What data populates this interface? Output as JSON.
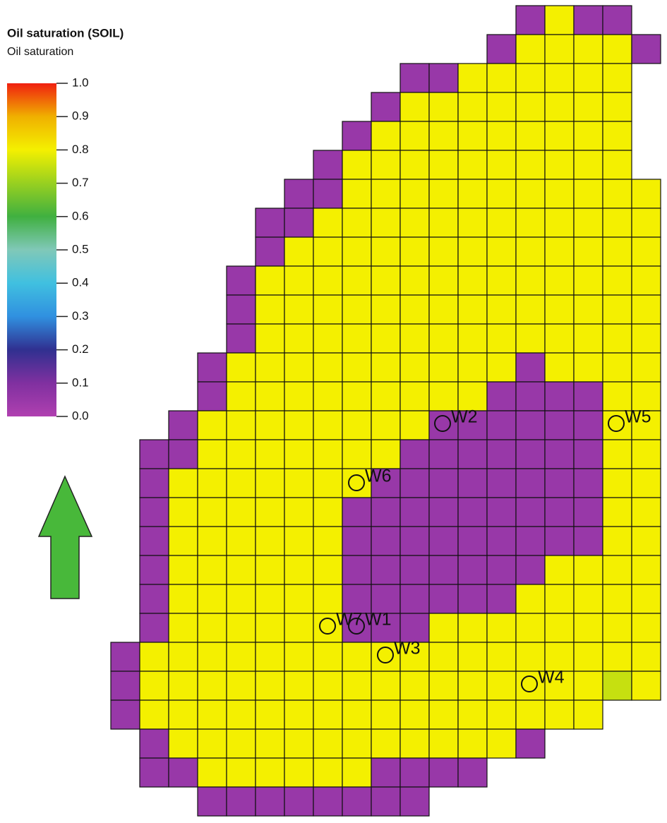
{
  "chart_data": {
    "type": "heatmap",
    "title": "Oil saturation (SOIL)",
    "subtitle": "Oil saturation",
    "colormap": [
      "#b040b0",
      "#8030a0",
      "#303090",
      "#3090e0",
      "#40c0e0",
      "#80c8b8",
      "#40b040",
      "#98d020",
      "#f4f000",
      "#f0b000",
      "#f02010"
    ],
    "clim": [
      0,
      1
    ],
    "cticks": [
      {
        "value": 0,
        "label": "0.0"
      },
      0.1,
      0.2,
      0.3,
      0.4,
      0.5,
      0.6,
      0.7,
      0.8,
      0.9,
      {
        "value": 1,
        "label": "1.0"
      }
    ],
    "wells": [
      "W2",
      "W5",
      "W6",
      "W7",
      "W1",
      "W3",
      "W4"
    ],
    "cells": [
      [
        null,
        null,
        null,
        null,
        null,
        null,
        null,
        null,
        null,
        null,
        null,
        null,
        null,
        null,
        0.05,
        0.8,
        0.05,
        0.05,
        null
      ],
      [
        null,
        null,
        null,
        null,
        null,
        null,
        null,
        null,
        null,
        null,
        null,
        null,
        null,
        0.05,
        0.8,
        0.8,
        0.8,
        0.8,
        0.05
      ],
      [
        null,
        null,
        null,
        null,
        null,
        null,
        null,
        null,
        null,
        null,
        0.05,
        0.05,
        0.8,
        0.8,
        0.8,
        0.8,
        0.8,
        0.8,
        null
      ],
      [
        null,
        null,
        null,
        null,
        null,
        null,
        null,
        null,
        null,
        0.05,
        0.8,
        0.8,
        0.8,
        0.8,
        0.8,
        0.8,
        0.8,
        0.8,
        null
      ],
      [
        null,
        null,
        null,
        null,
        null,
        null,
        null,
        null,
        0.05,
        0.8,
        0.8,
        0.8,
        0.8,
        0.8,
        0.8,
        0.8,
        0.8,
        0.8,
        null
      ],
      [
        null,
        null,
        null,
        null,
        null,
        null,
        null,
        0.05,
        0.8,
        0.8,
        0.8,
        0.8,
        0.8,
        0.8,
        0.8,
        0.8,
        0.8,
        0.8,
        null
      ],
      [
        null,
        null,
        null,
        null,
        null,
        null,
        0.05,
        0.05,
        0.8,
        0.8,
        0.8,
        0.8,
        0.8,
        0.8,
        0.8,
        0.8,
        0.8,
        0.8,
        0.8
      ],
      [
        null,
        null,
        null,
        null,
        null,
        0.05,
        0.05,
        0.8,
        0.8,
        0.8,
        0.8,
        0.8,
        0.8,
        0.8,
        0.8,
        0.8,
        0.8,
        0.8,
        0.8
      ],
      [
        null,
        null,
        null,
        null,
        null,
        0.05,
        0.8,
        0.8,
        0.8,
        0.8,
        0.8,
        0.8,
        0.8,
        0.8,
        0.8,
        0.8,
        0.8,
        0.8,
        0.8
      ],
      [
        null,
        null,
        null,
        null,
        0.05,
        0.8,
        0.8,
        0.8,
        0.8,
        0.8,
        0.8,
        0.8,
        0.8,
        0.8,
        0.8,
        0.8,
        0.8,
        0.8,
        0.8
      ],
      [
        null,
        null,
        null,
        null,
        0.05,
        0.8,
        0.8,
        0.8,
        0.8,
        0.8,
        0.8,
        0.8,
        0.8,
        0.8,
        0.8,
        0.8,
        0.8,
        0.8,
        0.8
      ],
      [
        null,
        null,
        null,
        null,
        0.05,
        0.8,
        0.8,
        0.8,
        0.8,
        0.8,
        0.8,
        0.8,
        0.8,
        0.8,
        0.8,
        0.8,
        0.8,
        0.8,
        0.8
      ],
      [
        null,
        null,
        null,
        0.05,
        0.8,
        0.8,
        0.8,
        0.8,
        0.8,
        0.8,
        0.8,
        0.8,
        0.8,
        0.8,
        0.05,
        0.8,
        0.8,
        0.8,
        0.8
      ],
      [
        null,
        null,
        null,
        0.05,
        0.8,
        0.8,
        0.8,
        0.8,
        0.8,
        0.8,
        0.8,
        0.8,
        0.8,
        0.05,
        0.05,
        0.05,
        0.05,
        0.8,
        0.8
      ],
      [
        null,
        null,
        0.05,
        0.8,
        0.8,
        0.8,
        0.8,
        0.8,
        0.8,
        0.8,
        0.8,
        0.05,
        0.05,
        0.05,
        0.05,
        0.05,
        0.05,
        0.8,
        0.8
      ],
      [
        null,
        0.05,
        0.05,
        0.8,
        0.8,
        0.8,
        0.8,
        0.8,
        0.8,
        0.8,
        0.05,
        0.05,
        0.05,
        0.05,
        0.05,
        0.05,
        0.05,
        0.8,
        0.8
      ],
      [
        null,
        0.05,
        0.8,
        0.8,
        0.8,
        0.8,
        0.8,
        0.8,
        0.8,
        0.05,
        0.05,
        0.05,
        0.05,
        0.05,
        0.05,
        0.05,
        0.05,
        0.8,
        0.8
      ],
      [
        null,
        0.05,
        0.8,
        0.8,
        0.8,
        0.8,
        0.8,
        0.8,
        0.05,
        0.05,
        0.05,
        0.05,
        0.05,
        0.05,
        0.05,
        0.05,
        0.05,
        0.8,
        0.8
      ],
      [
        null,
        0.05,
        0.8,
        0.8,
        0.8,
        0.8,
        0.8,
        0.8,
        0.05,
        0.05,
        0.05,
        0.05,
        0.05,
        0.05,
        0.05,
        0.05,
        0.05,
        0.8,
        0.8
      ],
      [
        null,
        0.05,
        0.8,
        0.8,
        0.8,
        0.8,
        0.8,
        0.8,
        0.05,
        0.05,
        0.05,
        0.05,
        0.05,
        0.05,
        0.05,
        0.8,
        0.8,
        0.8,
        0.8
      ],
      [
        null,
        0.05,
        0.8,
        0.8,
        0.8,
        0.8,
        0.8,
        0.8,
        0.05,
        0.05,
        0.05,
        0.05,
        0.05,
        0.05,
        0.8,
        0.8,
        0.8,
        0.8,
        0.8
      ],
      [
        null,
        0.05,
        0.8,
        0.8,
        0.8,
        0.8,
        0.8,
        0.8,
        0.05,
        0.05,
        0.05,
        0.8,
        0.8,
        0.8,
        0.8,
        0.8,
        0.8,
        0.8,
        0.8
      ],
      [
        0.05,
        0.8,
        0.8,
        0.8,
        0.8,
        0.8,
        0.8,
        0.8,
        0.8,
        0.8,
        0.8,
        0.8,
        0.8,
        0.8,
        0.8,
        0.8,
        0.8,
        0.8,
        0.8
      ],
      [
        0.05,
        0.8,
        0.8,
        0.8,
        0.8,
        0.8,
        0.8,
        0.8,
        0.8,
        0.8,
        0.8,
        0.8,
        0.8,
        0.8,
        0.8,
        0.8,
        0.8,
        0.75,
        0.8
      ],
      [
        0.05,
        0.8,
        0.8,
        0.8,
        0.8,
        0.8,
        0.8,
        0.8,
        0.8,
        0.8,
        0.8,
        0.8,
        0.8,
        0.8,
        0.8,
        0.8,
        0.8,
        null,
        null
      ],
      [
        null,
        0.05,
        0.8,
        0.8,
        0.8,
        0.8,
        0.8,
        0.8,
        0.8,
        0.8,
        0.8,
        0.8,
        0.8,
        0.8,
        0.05,
        null,
        null,
        null,
        null
      ],
      [
        null,
        0.05,
        0.05,
        0.8,
        0.8,
        0.8,
        0.8,
        0.8,
        0.8,
        0.05,
        0.05,
        0.05,
        0.05,
        null,
        null,
        null,
        null,
        null,
        null
      ],
      [
        null,
        null,
        null,
        0.05,
        0.05,
        0.05,
        0.05,
        0.05,
        0.05,
        0.05,
        0.05,
        null,
        null,
        null,
        null,
        null,
        null,
        null,
        null
      ]
    ]
  }
}
